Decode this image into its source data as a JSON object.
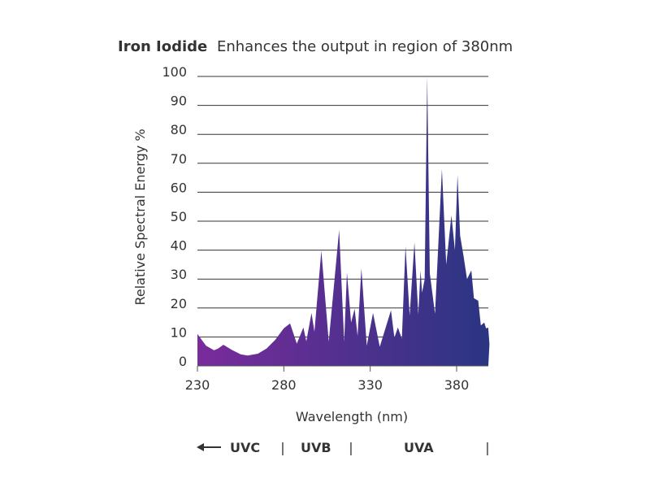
{
  "chart_data": {
    "type": "area",
    "title_bold": "Iron Iodide",
    "title_rest": "Enhances the output in region of 380nm",
    "xlabel": "Wavelength (nm)",
    "ylabel": "Relative Spectral Energy %",
    "xlim": [
      230,
      399
    ],
    "ylim": [
      0,
      100
    ],
    "xticks": [
      230,
      280,
      330,
      380
    ],
    "yticks": [
      0,
      10,
      20,
      30,
      40,
      50,
      60,
      70,
      80,
      90,
      100
    ],
    "grid": "horizontal",
    "colors": {
      "start": "#7a2b9c",
      "end": "#2a3582",
      "grid": "#333333",
      "text": "#333333"
    },
    "series": [
      {
        "x": [
          230,
          235,
          239.6,
          242,
          245,
          250,
          255,
          259,
          265,
          270,
          275,
          280,
          283.6,
          287.5,
          291.3,
          293,
          296,
          297.7,
          301.7,
          306,
          312,
          314.9,
          316.5,
          318.9,
          321,
          322.7,
          324.9,
          328,
          331.6,
          335.5,
          342,
          344,
          346,
          348.3,
          350.4,
          352.8,
          355.6,
          357.8,
          359.1,
          360,
          361.5,
          363,
          364.5,
          367.5,
          371.5,
          374,
          377,
          379,
          380.5,
          382,
          384,
          386,
          388.5,
          390,
          392.5,
          394,
          396,
          397,
          398.3,
          399
        ],
        "y": [
          11,
          7,
          5.4,
          6,
          7.3,
          5.5,
          4,
          3.6,
          4.2,
          6,
          9,
          13,
          14.7,
          7.7,
          13.3,
          8.5,
          18.3,
          11.8,
          39.8,
          8.4,
          47,
          8.4,
          32.3,
          15,
          19.7,
          10.3,
          33.7,
          7,
          18.3,
          6.6,
          19.2,
          9.8,
          13.3,
          9.4,
          41.4,
          17.4,
          42.7,
          17.8,
          32.9,
          25.3,
          30,
          100,
          32,
          18,
          68,
          35,
          52,
          40,
          66,
          45,
          38,
          30,
          33,
          23.4,
          22.5,
          14,
          15,
          13,
          13.2,
          7.5
        ]
      }
    ],
    "bands": {
      "uvc": "UVC",
      "uvb": "UVB",
      "uva": "UVA",
      "separator": "|"
    }
  }
}
